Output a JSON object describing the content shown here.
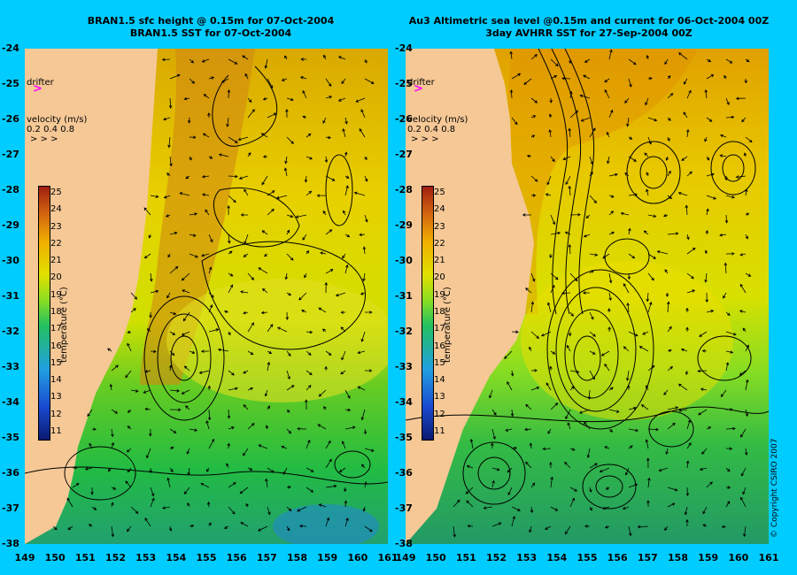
{
  "left_panel": {
    "title_line1": "BRAN1.5 sfc height @ 0.15m for 07-Oct-2004",
    "title_line2": "BRAN1.5 SST for 07-Oct-2004"
  },
  "right_panel": {
    "title_line1": "Au3 Altimetric sea level  @0.15m and current for 06-Oct-2004 00Z",
    "title_line2": "3day AVHRR SST for 27-Sep-2004 00Z"
  },
  "lat_labels": [
    "-24",
    "-25",
    "-26",
    "-27",
    "-28",
    "-29",
    "-30",
    "-31",
    "-32",
    "-33",
    "-34",
    "-35",
    "-36",
    "-37",
    "-38"
  ],
  "lon_labels": [
    "149",
    "150",
    "151",
    "152",
    "153",
    "154",
    "155",
    "156",
    "157",
    "158",
    "159",
    "160",
    "161"
  ],
  "drifter_label": "drifter",
  "velocity_title": "velocity (m/s)",
  "velocity_values": [
    "0.2",
    "0.4",
    "0.8"
  ],
  "colorbar": {
    "ticks": [
      "25",
      "24",
      "23",
      "22",
      "21",
      "20",
      "19",
      "18",
      "17",
      "16",
      "15",
      "14",
      "13",
      "12",
      "11"
    ],
    "unit": "temperature (°C)"
  },
  "copyright": "© Copyright CSIRO 2007",
  "colors": {
    "background": "#00ccff",
    "land": "#f5c896",
    "drifter": "#ff00ff"
  }
}
